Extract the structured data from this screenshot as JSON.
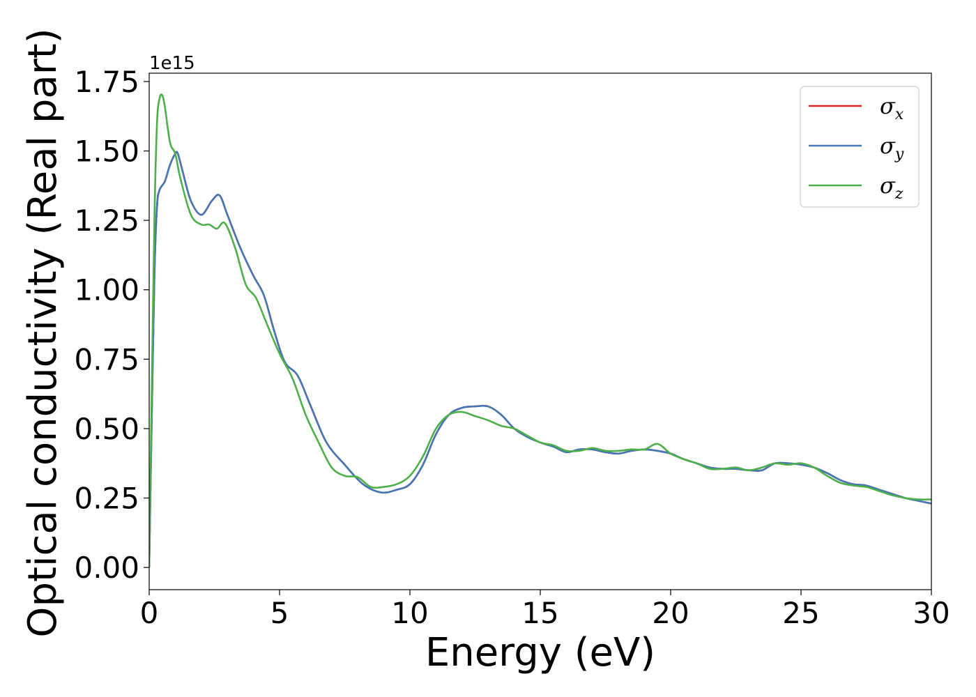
{
  "chart_data": {
    "type": "line",
    "title": "",
    "xlabel": "Energy (eV)",
    "ylabel": "Optical conductivity (Real part)",
    "y_offset_label": "1e15",
    "xlim": [
      0,
      30
    ],
    "ylim": [
      -0.08,
      1.78
    ],
    "x_ticks": [
      0,
      5,
      10,
      15,
      20,
      25,
      30
    ],
    "x_tick_labels": [
      "0",
      "5",
      "10",
      "15",
      "20",
      "25",
      "30"
    ],
    "y_ticks": [
      0,
      0.25,
      0.5,
      0.75,
      1.0,
      1.25,
      1.5,
      1.75
    ],
    "y_tick_labels": [
      "0.00",
      "0.25",
      "0.50",
      "0.75",
      "1.00",
      "1.25",
      "1.50",
      "1.75"
    ],
    "grid": false,
    "legend_position": "top-right",
    "series": [
      {
        "name": "σx",
        "symbol": "σ",
        "subscript": "x",
        "color": "#d62728",
        "x": [
          0,
          0.1,
          0.2,
          0.3,
          0.4,
          0.6,
          0.8,
          1.0,
          1.1,
          1.3,
          1.6,
          2.0,
          2.4,
          2.7,
          3.0,
          3.5,
          4.0,
          4.4,
          4.8,
          5.2,
          5.7,
          6.2,
          6.8,
          7.5,
          8.2,
          8.9,
          9.5,
          10.0,
          10.5,
          11.0,
          11.5,
          12.0,
          12.5,
          13.0,
          13.5,
          14.0,
          14.5,
          15.0,
          15.5,
          16.0,
          16.5,
          17.0,
          17.5,
          18.0,
          18.5,
          19.0,
          19.5,
          20.0,
          20.5,
          21.0,
          21.5,
          22.0,
          22.5,
          23.0,
          23.5,
          24.0,
          24.5,
          25.0,
          25.5,
          26.0,
          26.5,
          27.0,
          27.5,
          28.0,
          28.5,
          29.0,
          29.5,
          30.0
        ],
        "y": [
          0.0,
          0.55,
          1.05,
          1.3,
          1.36,
          1.39,
          1.45,
          1.49,
          1.49,
          1.42,
          1.32,
          1.27,
          1.32,
          1.34,
          1.27,
          1.15,
          1.05,
          0.98,
          0.85,
          0.74,
          0.69,
          0.58,
          0.45,
          0.37,
          0.3,
          0.27,
          0.28,
          0.3,
          0.37,
          0.48,
          0.55,
          0.575,
          0.58,
          0.58,
          0.55,
          0.5,
          0.47,
          0.45,
          0.435,
          0.415,
          0.425,
          0.425,
          0.415,
          0.41,
          0.42,
          0.425,
          0.42,
          0.41,
          0.39,
          0.375,
          0.36,
          0.355,
          0.355,
          0.35,
          0.35,
          0.375,
          0.375,
          0.37,
          0.36,
          0.34,
          0.315,
          0.3,
          0.295,
          0.28,
          0.265,
          0.25,
          0.24,
          0.23
        ]
      },
      {
        "name": "σy",
        "symbol": "σ",
        "subscript": "y",
        "color": "#4477b4",
        "x": [
          0,
          0.1,
          0.2,
          0.3,
          0.4,
          0.6,
          0.8,
          1.0,
          1.1,
          1.3,
          1.6,
          2.0,
          2.4,
          2.7,
          3.0,
          3.5,
          4.0,
          4.4,
          4.8,
          5.2,
          5.7,
          6.2,
          6.8,
          7.5,
          8.2,
          8.9,
          9.5,
          10.0,
          10.5,
          11.0,
          11.5,
          12.0,
          12.5,
          13.0,
          13.5,
          14.0,
          14.5,
          15.0,
          15.5,
          16.0,
          16.5,
          17.0,
          17.5,
          18.0,
          18.5,
          19.0,
          19.5,
          20.0,
          20.5,
          21.0,
          21.5,
          22.0,
          22.5,
          23.0,
          23.5,
          24.0,
          24.5,
          25.0,
          25.5,
          26.0,
          26.5,
          27.0,
          27.5,
          28.0,
          28.5,
          29.0,
          29.5,
          30.0
        ],
        "y": [
          0.0,
          0.55,
          1.05,
          1.3,
          1.36,
          1.39,
          1.45,
          1.49,
          1.49,
          1.42,
          1.32,
          1.27,
          1.32,
          1.34,
          1.27,
          1.15,
          1.05,
          0.98,
          0.85,
          0.74,
          0.69,
          0.58,
          0.45,
          0.37,
          0.3,
          0.27,
          0.28,
          0.3,
          0.37,
          0.48,
          0.55,
          0.575,
          0.58,
          0.58,
          0.55,
          0.5,
          0.47,
          0.45,
          0.435,
          0.415,
          0.425,
          0.425,
          0.415,
          0.41,
          0.42,
          0.425,
          0.42,
          0.41,
          0.39,
          0.375,
          0.36,
          0.355,
          0.355,
          0.35,
          0.35,
          0.375,
          0.375,
          0.37,
          0.36,
          0.34,
          0.315,
          0.3,
          0.295,
          0.28,
          0.265,
          0.25,
          0.24,
          0.23
        ]
      },
      {
        "name": "σz",
        "symbol": "σ",
        "subscript": "z",
        "color": "#4daf4a",
        "x": [
          0,
          0.1,
          0.2,
          0.3,
          0.4,
          0.5,
          0.6,
          0.8,
          1.0,
          1.2,
          1.6,
          2.0,
          2.3,
          2.6,
          2.9,
          3.3,
          3.7,
          4.1,
          4.5,
          5.0,
          5.5,
          6.0,
          6.5,
          7.0,
          7.5,
          8.0,
          8.5,
          9.0,
          9.5,
          10.0,
          10.5,
          11.0,
          11.5,
          12.0,
          12.5,
          13.0,
          13.5,
          14.0,
          14.5,
          15.0,
          15.5,
          16.0,
          16.5,
          17.0,
          17.5,
          18.0,
          18.5,
          19.0,
          19.5,
          20.0,
          20.5,
          21.0,
          21.5,
          22.0,
          22.5,
          23.0,
          23.5,
          24.0,
          24.5,
          25.0,
          25.5,
          26.0,
          26.5,
          27.0,
          27.5,
          28.0,
          28.5,
          29.0,
          29.5,
          30.0
        ],
        "y": [
          0.0,
          0.65,
          1.25,
          1.6,
          1.69,
          1.7,
          1.66,
          1.53,
          1.49,
          1.4,
          1.27,
          1.235,
          1.235,
          1.22,
          1.24,
          1.15,
          1.02,
          0.97,
          0.88,
          0.77,
          0.68,
          0.55,
          0.45,
          0.36,
          0.33,
          0.325,
          0.29,
          0.29,
          0.3,
          0.33,
          0.4,
          0.5,
          0.55,
          0.56,
          0.545,
          0.53,
          0.51,
          0.5,
          0.475,
          0.45,
          0.44,
          0.42,
          0.42,
          0.43,
          0.42,
          0.42,
          0.425,
          0.425,
          0.445,
          0.41,
          0.39,
          0.375,
          0.355,
          0.355,
          0.36,
          0.35,
          0.36,
          0.375,
          0.37,
          0.375,
          0.36,
          0.33,
          0.305,
          0.295,
          0.29,
          0.275,
          0.26,
          0.25,
          0.245,
          0.245
        ]
      }
    ]
  }
}
